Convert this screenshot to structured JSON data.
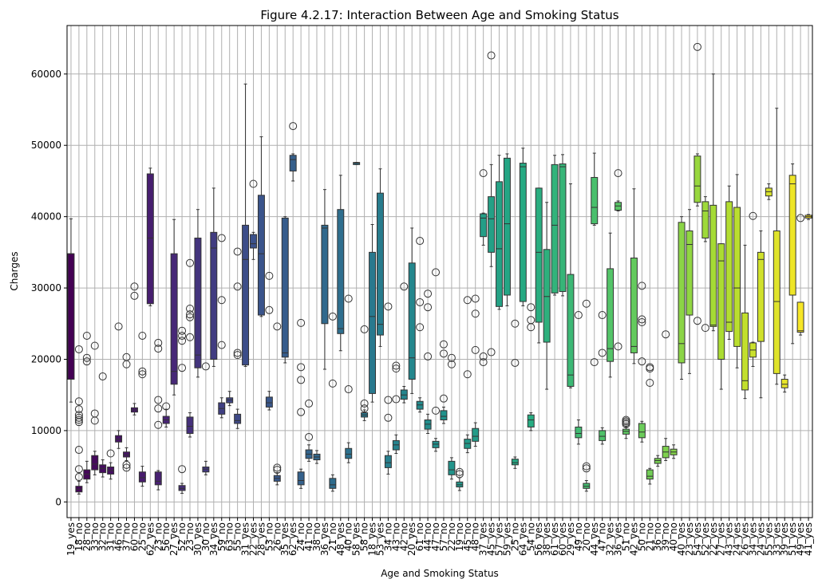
{
  "chart_data": {
    "type": "box",
    "title": "Figure 4.2.17: Interaction Between Age and Smoking Status",
    "xlabel": "Age and Smoking Status",
    "ylabel": "Charges",
    "ylim": [
      -2200,
      66800
    ],
    "yticks": [
      0,
      10000,
      20000,
      30000,
      40000,
      50000,
      60000
    ],
    "grid": true,
    "palette": "viridis",
    "boxes": [
      {
        "label": "19_yes",
        "q1": 17200,
        "median": 34800,
        "q3": 34800,
        "wlo": 14000,
        "whi": 39700,
        "outliers": []
      },
      {
        "label": "18_no",
        "q1": 1400,
        "median": 1800,
        "q3": 2200,
        "wlo": 1100,
        "whi": 2900,
        "outliers": [
          3500,
          4600,
          7300,
          11200,
          11500,
          11800,
          12200,
          13000,
          14100,
          21400
        ]
      },
      {
        "label": "28_no",
        "q1": 3200,
        "median": 3900,
        "q3": 4500,
        "wlo": 2700,
        "whi": 5700,
        "outliers": [
          19700,
          20200,
          23300
        ]
      },
      {
        "label": "33_no",
        "q1": 4500,
        "median": 5300,
        "q3": 6500,
        "wlo": 3800,
        "whi": 7100,
        "outliers": [
          11400,
          12400,
          21900
        ]
      },
      {
        "label": "32_no",
        "q1": 4100,
        "median": 4700,
        "q3": 5200,
        "wlo": 3500,
        "whi": 5900,
        "outliers": [
          17600
        ]
      },
      {
        "label": "31_no",
        "q1": 3900,
        "median": 4400,
        "q3": 4900,
        "wlo": 3200,
        "whi": 5500,
        "outliers": [
          6800
        ]
      },
      {
        "label": "46_no",
        "q1": 8400,
        "median": 8800,
        "q3": 9300,
        "wlo": 7500,
        "whi": 10000,
        "outliers": [
          24600
        ]
      },
      {
        "label": "37_no",
        "q1": 6300,
        "median": 6600,
        "q3": 7000,
        "wlo": 5800,
        "whi": 7600,
        "outliers": [
          4800,
          5200,
          19300,
          20300
        ]
      },
      {
        "label": "60_no",
        "q1": 12600,
        "median": 12900,
        "q3": 13200,
        "wlo": 12200,
        "whi": 13800,
        "outliers": [
          28900,
          30200
        ]
      },
      {
        "label": "25_no",
        "q1": 2800,
        "median": 3400,
        "q3": 4200,
        "wlo": 2200,
        "whi": 5000,
        "outliers": [
          17900,
          18300,
          23300
        ]
      },
      {
        "label": "62_yes",
        "q1": 27800,
        "median": 37000,
        "q3": 46000,
        "wlo": 27500,
        "whi": 46800,
        "outliers": []
      },
      {
        "label": "23_no",
        "q1": 2400,
        "median": 2900,
        "q3": 4200,
        "wlo": 1700,
        "whi": 4400,
        "outliers": [
          10800,
          13100,
          14300,
          21500,
          22300
        ]
      },
      {
        "label": "56_no",
        "q1": 11000,
        "median": 11500,
        "q3": 12000,
        "wlo": 10500,
        "whi": 13000,
        "outliers": [
          13400
        ]
      },
      {
        "label": "27_yes",
        "q1": 16500,
        "median": 18300,
        "q3": 34800,
        "wlo": 15000,
        "whi": 39600,
        "outliers": []
      },
      {
        "label": "52_no",
        "q1": 1600,
        "median": 1900,
        "q3": 2300,
        "wlo": 1200,
        "whi": 2600,
        "outliers": [
          4600,
          18800,
          22600,
          23300,
          24000
        ]
      },
      {
        "label": "23_no",
        "q1": 9600,
        "median": 10600,
        "q3": 11900,
        "wlo": 9100,
        "whi": 12500,
        "outliers": [
          23100,
          25900,
          26300,
          27100,
          33500
        ]
      },
      {
        "label": "30_yes",
        "q1": 18800,
        "median": 20600,
        "q3": 37000,
        "wlo": 17500,
        "whi": 41000,
        "outliers": []
      },
      {
        "label": "30_no",
        "q1": 4200,
        "median": 4600,
        "q3": 4900,
        "wlo": 3800,
        "whi": 5700,
        "outliers": [
          19000
        ]
      },
      {
        "label": "34_yes",
        "q1": 20000,
        "median": 35600,
        "q3": 37800,
        "wlo": 19000,
        "whi": 44000,
        "outliers": []
      },
      {
        "label": "59_no",
        "q1": 12300,
        "median": 13100,
        "q3": 13900,
        "wlo": 11800,
        "whi": 14600,
        "outliers": [
          22000,
          28300,
          37000
        ]
      },
      {
        "label": "63_no",
        "q1": 13900,
        "median": 14300,
        "q3": 14600,
        "wlo": 13500,
        "whi": 15500,
        "outliers": []
      },
      {
        "label": "55_no",
        "q1": 11000,
        "median": 11400,
        "q3": 12300,
        "wlo": 10300,
        "whi": 13000,
        "outliers": [
          20600,
          20900,
          30200,
          35100
        ]
      },
      {
        "label": "31_yes",
        "q1": 19200,
        "median": 34000,
        "q3": 38800,
        "wlo": 19000,
        "whi": 58600,
        "outliers": []
      },
      {
        "label": "22_yes",
        "q1": 35600,
        "median": 36200,
        "q3": 37500,
        "wlo": 34000,
        "whi": 37800,
        "outliers": [
          44600
        ]
      },
      {
        "label": "28_yes",
        "q1": 26200,
        "median": 34800,
        "q3": 43000,
        "wlo": 26000,
        "whi": 51200,
        "outliers": []
      },
      {
        "label": "53_no",
        "q1": 13300,
        "median": 13900,
        "q3": 14700,
        "wlo": 12900,
        "whi": 15500,
        "outliers": [
          26900,
          31700
        ]
      },
      {
        "label": "26_no",
        "q1": 2900,
        "median": 3300,
        "q3": 3700,
        "wlo": 2400,
        "whi": 4100,
        "outliers": [
          4500,
          4800,
          24600
        ]
      },
      {
        "label": "35_yes",
        "q1": 20300,
        "median": 20900,
        "q3": 39800,
        "wlo": 19500,
        "whi": 40000,
        "outliers": []
      },
      {
        "label": "62_yes",
        "q1": 46400,
        "median": 48000,
        "q3": 48600,
        "wlo": 45000,
        "whi": 48800,
        "outliers": [
          52700
        ]
      },
      {
        "label": "24_no",
        "q1": 2400,
        "median": 3000,
        "q3": 4200,
        "wlo": 1900,
        "whi": 4600,
        "outliers": [
          12600,
          17100,
          18900,
          25100
        ]
      },
      {
        "label": "41_no",
        "q1": 6100,
        "median": 6700,
        "q3": 7300,
        "wlo": 5700,
        "whi": 8000,
        "outliers": [
          9100,
          13800
        ]
      },
      {
        "label": "38_no",
        "q1": 5900,
        "median": 6300,
        "q3": 6700,
        "wlo": 5400,
        "whi": 7200,
        "outliers": []
      },
      {
        "label": "36_yes",
        "q1": 25000,
        "median": 38400,
        "q3": 38800,
        "wlo": 18600,
        "whi": 43800,
        "outliers": []
      },
      {
        "label": "21_no",
        "q1": 1900,
        "median": 2400,
        "q3": 3300,
        "wlo": 1500,
        "whi": 3800,
        "outliers": [
          16600,
          26000
        ]
      },
      {
        "label": "48_yes",
        "q1": 23600,
        "median": 24300,
        "q3": 41000,
        "wlo": 21200,
        "whi": 45800,
        "outliers": []
      },
      {
        "label": "40_no",
        "q1": 6100,
        "median": 6700,
        "q3": 7500,
        "wlo": 5500,
        "whi": 8300,
        "outliers": [
          15800,
          28500
        ]
      },
      {
        "label": "58_yes",
        "q1": 47300,
        "median": 47500,
        "q3": 47600,
        "wlo": 47300,
        "whi": 47600,
        "outliers": []
      },
      {
        "label": "58_no",
        "q1": 11900,
        "median": 12200,
        "q3": 12500,
        "wlo": 11400,
        "whi": 12900,
        "outliers": [
          13100,
          13800,
          24200
        ]
      },
      {
        "label": "18_yes",
        "q1": 15200,
        "median": 26000,
        "q3": 35000,
        "wlo": 14000,
        "whi": 38900,
        "outliers": []
      },
      {
        "label": "53_yes",
        "q1": 23400,
        "median": 24900,
        "q3": 43300,
        "wlo": 21800,
        "whi": 46700,
        "outliers": []
      },
      {
        "label": "34_no",
        "q1": 4800,
        "median": 5500,
        "q3": 6500,
        "wlo": 3900,
        "whi": 7100,
        "outliers": [
          11800,
          14300,
          27400
        ]
      },
      {
        "label": "43_no",
        "q1": 7300,
        "median": 8000,
        "q3": 8600,
        "wlo": 6800,
        "whi": 9400,
        "outliers": [
          14400,
          18700,
          19100
        ]
      },
      {
        "label": "42_no",
        "q1": 14400,
        "median": 15000,
        "q3": 15700,
        "wlo": 13900,
        "whi": 16200,
        "outliers": [
          30200
        ]
      },
      {
        "label": "20_yes",
        "q1": 17200,
        "median": 20200,
        "q3": 33500,
        "wlo": 15200,
        "whi": 38400,
        "outliers": []
      },
      {
        "label": "61_no",
        "q1": 13000,
        "median": 13600,
        "q3": 14100,
        "wlo": 12600,
        "whi": 14600,
        "outliers": [
          24500,
          28000,
          36600
        ]
      },
      {
        "label": "44_no",
        "q1": 10200,
        "median": 10900,
        "q3": 11500,
        "wlo": 9600,
        "whi": 12300,
        "outliers": [
          20400,
          27300,
          29200
        ]
      },
      {
        "label": "47_no",
        "q1": 7600,
        "median": 8100,
        "q3": 8500,
        "wlo": 7100,
        "whi": 8900,
        "outliers": [
          12800,
          32200
        ]
      },
      {
        "label": "57_no",
        "q1": 11500,
        "median": 12000,
        "q3": 12800,
        "wlo": 11000,
        "whi": 13300,
        "outliers": [
          14500,
          20800,
          22100
        ]
      },
      {
        "label": "22_no",
        "q1": 3800,
        "median": 4500,
        "q3": 5700,
        "wlo": 3200,
        "whi": 6200,
        "outliers": [
          19300,
          20200
        ]
      },
      {
        "label": "19_no",
        "q1": 2100,
        "median": 2400,
        "q3": 2800,
        "wlo": 1600,
        "whi": 3400,
        "outliers": [
          3900,
          4200
        ]
      },
      {
        "label": "45_no",
        "q1": 7500,
        "median": 8200,
        "q3": 8800,
        "wlo": 6900,
        "whi": 9400,
        "outliers": [
          17900,
          28300
        ]
      },
      {
        "label": "48_no",
        "q1": 8500,
        "median": 9200,
        "q3": 10300,
        "wlo": 7800,
        "whi": 11100,
        "outliers": [
          21300,
          26400,
          28500
        ]
      },
      {
        "label": "37_yes",
        "q1": 37200,
        "median": 39800,
        "q3": 40400,
        "wlo": 36000,
        "whi": 40500,
        "outliers": [
          19600,
          20400,
          46100
        ]
      },
      {
        "label": "45_yes",
        "q1": 35000,
        "median": 39700,
        "q3": 42800,
        "wlo": 33000,
        "whi": 47300,
        "outliers": [
          21000,
          62600
        ]
      },
      {
        "label": "57_yes",
        "q1": 27400,
        "median": 35500,
        "q3": 44900,
        "wlo": 27000,
        "whi": 48600,
        "outliers": []
      },
      {
        "label": "59_yes",
        "q1": 29000,
        "median": 39000,
        "q3": 48200,
        "wlo": 27500,
        "whi": 48800,
        "outliers": []
      },
      {
        "label": "25_no",
        "q1": 5200,
        "median": 5500,
        "q3": 6000,
        "wlo": 4700,
        "whi": 6300,
        "outliers": [
          19500,
          25000
        ]
      },
      {
        "label": "64_yes",
        "q1": 28100,
        "median": 47000,
        "q3": 47500,
        "wlo": 27500,
        "whi": 49600,
        "outliers": []
      },
      {
        "label": "54_no",
        "q1": 10500,
        "median": 11500,
        "q3": 12200,
        "wlo": 10000,
        "whi": 12500,
        "outliers": [
          24500,
          25500,
          27300
        ]
      },
      {
        "label": "56_yes",
        "q1": 25200,
        "median": 35000,
        "q3": 44000,
        "wlo": 22300,
        "whi": 44000,
        "outliers": []
      },
      {
        "label": "38_yes",
        "q1": 22400,
        "median": 28800,
        "q3": 35400,
        "wlo": 15800,
        "whi": 42000,
        "outliers": []
      },
      {
        "label": "61_yes",
        "q1": 29300,
        "median": 38800,
        "q3": 47300,
        "wlo": 29000,
        "whi": 48600,
        "outliers": []
      },
      {
        "label": "60_yes",
        "q1": 29500,
        "median": 47000,
        "q3": 47400,
        "wlo": 28900,
        "whi": 48700,
        "outliers": []
      },
      {
        "label": "29_yes",
        "q1": 16200,
        "median": 17800,
        "q3": 31900,
        "wlo": 16000,
        "whi": 44600,
        "outliers": []
      },
      {
        "label": "49_no",
        "q1": 9000,
        "median": 9600,
        "q3": 10500,
        "wlo": 8100,
        "whi": 11500,
        "outliers": [
          26200
        ]
      },
      {
        "label": "20_no",
        "q1": 1900,
        "median": 2200,
        "q3": 2600,
        "wlo": 1500,
        "whi": 3000,
        "outliers": [
          4700,
          5000,
          27800
        ]
      },
      {
        "label": "44_yes",
        "q1": 39000,
        "median": 41300,
        "q3": 45500,
        "wlo": 38800,
        "whi": 48900,
        "outliers": [
          19600
        ]
      },
      {
        "label": "47_no",
        "q1": 8600,
        "median": 9200,
        "q3": 10000,
        "wlo": 8100,
        "whi": 10400,
        "outliers": [
          20900,
          26200
        ]
      },
      {
        "label": "32_yes",
        "q1": 19700,
        "median": 21500,
        "q3": 32700,
        "wlo": 17500,
        "whi": 37700,
        "outliers": []
      },
      {
        "label": "36_yes",
        "q1": 40900,
        "median": 41500,
        "q3": 42000,
        "wlo": 40800,
        "whi": 42200,
        "outliers": [
          21800,
          46100
        ]
      },
      {
        "label": "51_no",
        "q1": 9500,
        "median": 9900,
        "q3": 10200,
        "wlo": 8900,
        "whi": 10500,
        "outliers": [
          10900,
          11100,
          11300,
          11500
        ]
      },
      {
        "label": "42_yes",
        "q1": 20900,
        "median": 21800,
        "q3": 34200,
        "wlo": 19400,
        "whi": 43900,
        "outliers": []
      },
      {
        "label": "50_no",
        "q1": 9000,
        "median": 9800,
        "q3": 11000,
        "wlo": 8400,
        "whi": 11300,
        "outliers": [
          19700,
          25200,
          25600,
          30300
        ]
      },
      {
        "label": "21_no",
        "q1": 3200,
        "median": 3600,
        "q3": 4500,
        "wlo": 2500,
        "whi": 4700,
        "outliers": [
          16700,
          18700,
          18900
        ]
      },
      {
        "label": "36_no",
        "q1": 5400,
        "median": 5800,
        "q3": 6100,
        "wlo": 5000,
        "whi": 6500,
        "outliers": []
      },
      {
        "label": "39_no",
        "q1": 6200,
        "median": 7000,
        "q3": 7800,
        "wlo": 5800,
        "whi": 8900,
        "outliers": [
          23500
        ]
      },
      {
        "label": "40_no",
        "q1": 6600,
        "median": 7000,
        "q3": 7400,
        "wlo": 6100,
        "whi": 8000,
        "outliers": []
      },
      {
        "label": "40_yes",
        "q1": 19500,
        "median": 22200,
        "q3": 39200,
        "wlo": 17200,
        "whi": 40000,
        "outliers": []
      },
      {
        "label": "23_yes",
        "q1": 26200,
        "median": 36100,
        "q3": 38000,
        "wlo": 18000,
        "whi": 41000,
        "outliers": []
      },
      {
        "label": "54_yes",
        "q1": 42000,
        "median": 44300,
        "q3": 48500,
        "wlo": 41500,
        "whi": 48800,
        "outliers": [
          25400,
          63800
        ]
      },
      {
        "label": "52_yes",
        "q1": 37000,
        "median": 40800,
        "q3": 42100,
        "wlo": 36500,
        "whi": 42800,
        "outliers": [
          24400
        ]
      },
      {
        "label": "22_yes",
        "q1": 24600,
        "median": 24800,
        "q3": 41600,
        "wlo": 24000,
        "whi": 60000,
        "outliers": []
      },
      {
        "label": "27_yes",
        "q1": 20000,
        "median": 33800,
        "q3": 36200,
        "wlo": 15800,
        "whi": 36200,
        "outliers": []
      },
      {
        "label": "43_yes",
        "q1": 23900,
        "median": 25200,
        "q3": 42100,
        "wlo": 22800,
        "whi": 44300,
        "outliers": []
      },
      {
        "label": "24_yes",
        "q1": 21800,
        "median": 30000,
        "q3": 41300,
        "wlo": 18800,
        "whi": 45900,
        "outliers": []
      },
      {
        "label": "26_yes",
        "q1": 15700,
        "median": 17000,
        "q3": 26500,
        "wlo": 14500,
        "whi": 36000,
        "outliers": []
      },
      {
        "label": "34_yes",
        "q1": 20300,
        "median": 21300,
        "q3": 22300,
        "wlo": 19000,
        "whi": 22400,
        "outliers": [
          40100
        ]
      },
      {
        "label": "24_yes",
        "q1": 22500,
        "median": 34000,
        "q3": 35000,
        "wlo": 14600,
        "whi": 38000,
        "outliers": []
      },
      {
        "label": "55_yes",
        "q1": 42900,
        "median": 43500,
        "q3": 44000,
        "wlo": 42400,
        "whi": 44600,
        "outliers": []
      },
      {
        "label": "33_yes",
        "q1": 18000,
        "median": 28100,
        "q3": 38000,
        "wlo": 16500,
        "whi": 55200,
        "outliers": []
      },
      {
        "label": "39_yes",
        "q1": 16000,
        "median": 16500,
        "q3": 17200,
        "wlo": 15400,
        "whi": 17800,
        "outliers": []
      },
      {
        "label": "51_yes",
        "q1": 29000,
        "median": 44600,
        "q3": 45800,
        "wlo": 22200,
        "whi": 47400,
        "outliers": []
      },
      {
        "label": "49_yes",
        "q1": 23800,
        "median": 24000,
        "q3": 28000,
        "wlo": 23400,
        "whi": 28000,
        "outliers": [
          39800
        ]
      },
      {
        "label": "41_yes",
        "q1": 39800,
        "median": 40000,
        "q3": 40200,
        "wlo": 39600,
        "whi": 40300,
        "outliers": []
      }
    ]
  }
}
